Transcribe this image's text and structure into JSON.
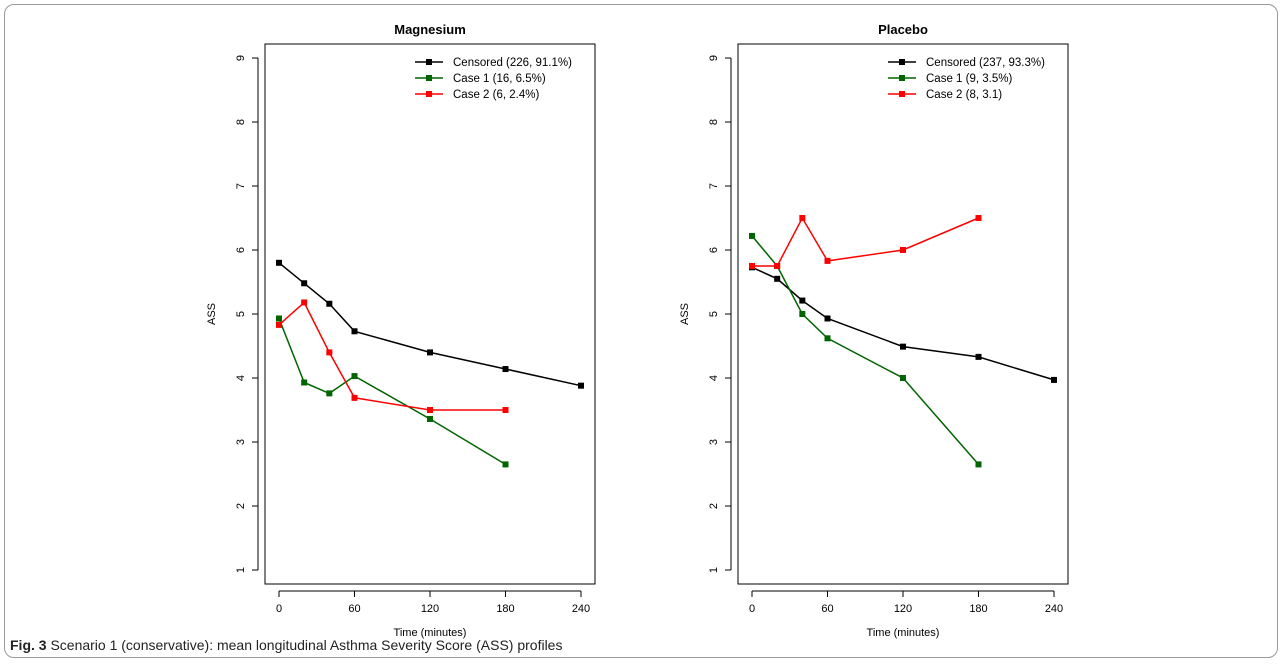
{
  "caption": {
    "label": "Fig. 3",
    "text": "Scenario 1 (conservative): mean longitudinal Asthma Severity Score (ASS) profiles"
  },
  "chart_data": [
    {
      "type": "line",
      "title": "Magnesium",
      "xlabel": "Time (minutes)",
      "ylabel": "ASS",
      "xlim": [
        0,
        240
      ],
      "ylim": [
        1,
        9
      ],
      "xticks": [
        0,
        60,
        120,
        180,
        240
      ],
      "yticks": [
        1,
        2,
        3,
        4,
        5,
        6,
        7,
        8,
        9
      ],
      "legend_position": "top-right",
      "series": [
        {
          "name": "Censored (226, 91.1%)",
          "color": "#000000",
          "x": [
            0,
            20,
            40,
            60,
            120,
            180,
            240
          ],
          "y": [
            5.8,
            5.48,
            5.16,
            4.73,
            4.4,
            4.14,
            3.88
          ]
        },
        {
          "name": "Case 1 (16, 6.5%)",
          "color": "#006400",
          "x": [
            0,
            20,
            40,
            60,
            120,
            180
          ],
          "y": [
            4.93,
            3.93,
            3.76,
            4.03,
            3.36,
            2.65
          ]
        },
        {
          "name": "Case 2 (6, 2.4%)",
          "color": "#ff0000",
          "x": [
            0,
            20,
            40,
            60,
            120,
            180
          ],
          "y": [
            4.83,
            5.18,
            4.4,
            3.69,
            3.5,
            3.5
          ]
        }
      ]
    },
    {
      "type": "line",
      "title": "Placebo",
      "xlabel": "Time (minutes)",
      "ylabel": "ASS",
      "xlim": [
        0,
        240
      ],
      "ylim": [
        1,
        9
      ],
      "xticks": [
        0,
        60,
        120,
        180,
        240
      ],
      "yticks": [
        1,
        2,
        3,
        4,
        5,
        6,
        7,
        8,
        9
      ],
      "legend_position": "top-right",
      "series": [
        {
          "name": "Censored (237, 93.3%)",
          "color": "#000000",
          "x": [
            0,
            20,
            40,
            60,
            120,
            180,
            240
          ],
          "y": [
            5.73,
            5.55,
            5.21,
            4.93,
            4.49,
            4.33,
            3.97
          ]
        },
        {
          "name": "Case 1 (9, 3.5%)",
          "color": "#006400",
          "x": [
            0,
            20,
            40,
            60,
            120,
            180
          ],
          "y": [
            6.22,
            5.75,
            5.0,
            4.62,
            4.0,
            2.65
          ]
        },
        {
          "name": "Case 2 (8, 3.1)",
          "color": "#ff0000",
          "x": [
            0,
            20,
            40,
            60,
            120,
            180
          ],
          "y": [
            5.75,
            5.75,
            6.5,
            5.83,
            6.0,
            6.5
          ]
        }
      ]
    }
  ]
}
